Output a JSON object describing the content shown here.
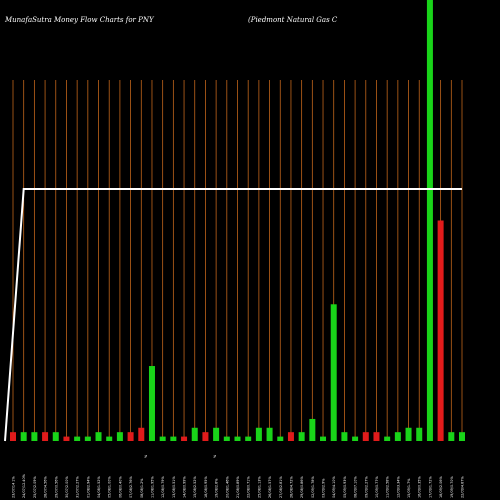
{
  "header": {
    "left": "MunafaSutra  Money Flow  Charts for PNY",
    "right": "(Piedmont Natural Gas C"
  },
  "colors": {
    "background": "#000000",
    "grid": "#c0651b",
    "up_bar": "#19d419",
    "down_bar": "#e11b1b",
    "line": "#ffffff"
  },
  "chart_data": {
    "type": "bar",
    "ylim": [
      0,
      100
    ],
    "grid": true,
    "categories": [
      "23/07/14 1%",
      "24/07/12.40%",
      "25/07/2.09%",
      "28/07/4.56%",
      "29/07/0.56%",
      "30/07/2.00%",
      "31/07/2.27%",
      "01/08/2.94%",
      "04/08/1.52%",
      "05/08/1.00%",
      "06/08/0.40%",
      "07/08/2.76%",
      "08/08/1.2%",
      "11/08/1.95%",
      "12/08/0.79%",
      "13/08/0.51%",
      "14/08/0.99%",
      "15/08/2.52%",
      "18/08/0.95%",
      "19/08/2.8%",
      "20/08/1.46%",
      "21/08/0.89%",
      "22/08/0.71%",
      "25/08/1.13%",
      "26/08/1.57%",
      "27/08/2.81%",
      "28/08/4.72%",
      "29/08/0.86%",
      "02/09/1.78%",
      "03/09/2.9%",
      "04/09/4.10%",
      "05/09/0.93%",
      "08/09/7.10%",
      "09/09/2.27%",
      "10/09/0.77%",
      "11/09/2.58%",
      "12/09/3.34%",
      "15/09/1.7%",
      "16/09/0.35%",
      "17/09/1.72%",
      "18/09/2.06%",
      "19/09/0.70%",
      "22/09/4.87%"
    ],
    "values": [
      2,
      2,
      2,
      2,
      2,
      1,
      1,
      1,
      2,
      1,
      2,
      2,
      3,
      17,
      1,
      1,
      1,
      3,
      2,
      3,
      1,
      1,
      1,
      3,
      3,
      1,
      2,
      2,
      5,
      1,
      31,
      2,
      1,
      2,
      2,
      1,
      2,
      3,
      3,
      100,
      50,
      2,
      2
    ],
    "colors": [
      "down",
      "up",
      "up",
      "down",
      "up",
      "down",
      "up",
      "up",
      "up",
      "up",
      "up",
      "down",
      "down",
      "up",
      "up",
      "up",
      "down",
      "up",
      "down",
      "up",
      "up",
      "up",
      "up",
      "up",
      "up",
      "up",
      "down",
      "up",
      "up",
      "up",
      "up",
      "up",
      "up",
      "down",
      "down",
      "up",
      "up",
      "up",
      "up",
      "up",
      "down",
      "up",
      "up"
    ],
    "line": [
      0,
      75,
      75,
      75,
      75,
      75,
      75,
      75,
      75,
      75,
      75,
      75,
      75,
      75,
      75,
      75,
      75,
      75,
      75,
      75,
      75,
      75,
      75,
      75,
      75,
      75,
      75,
      75,
      75,
      75,
      75,
      75,
      75,
      75,
      75,
      75,
      75,
      75,
      75,
      75,
      75,
      75,
      75
    ],
    "axis_markers": [
      "%",
      "%"
    ]
  }
}
